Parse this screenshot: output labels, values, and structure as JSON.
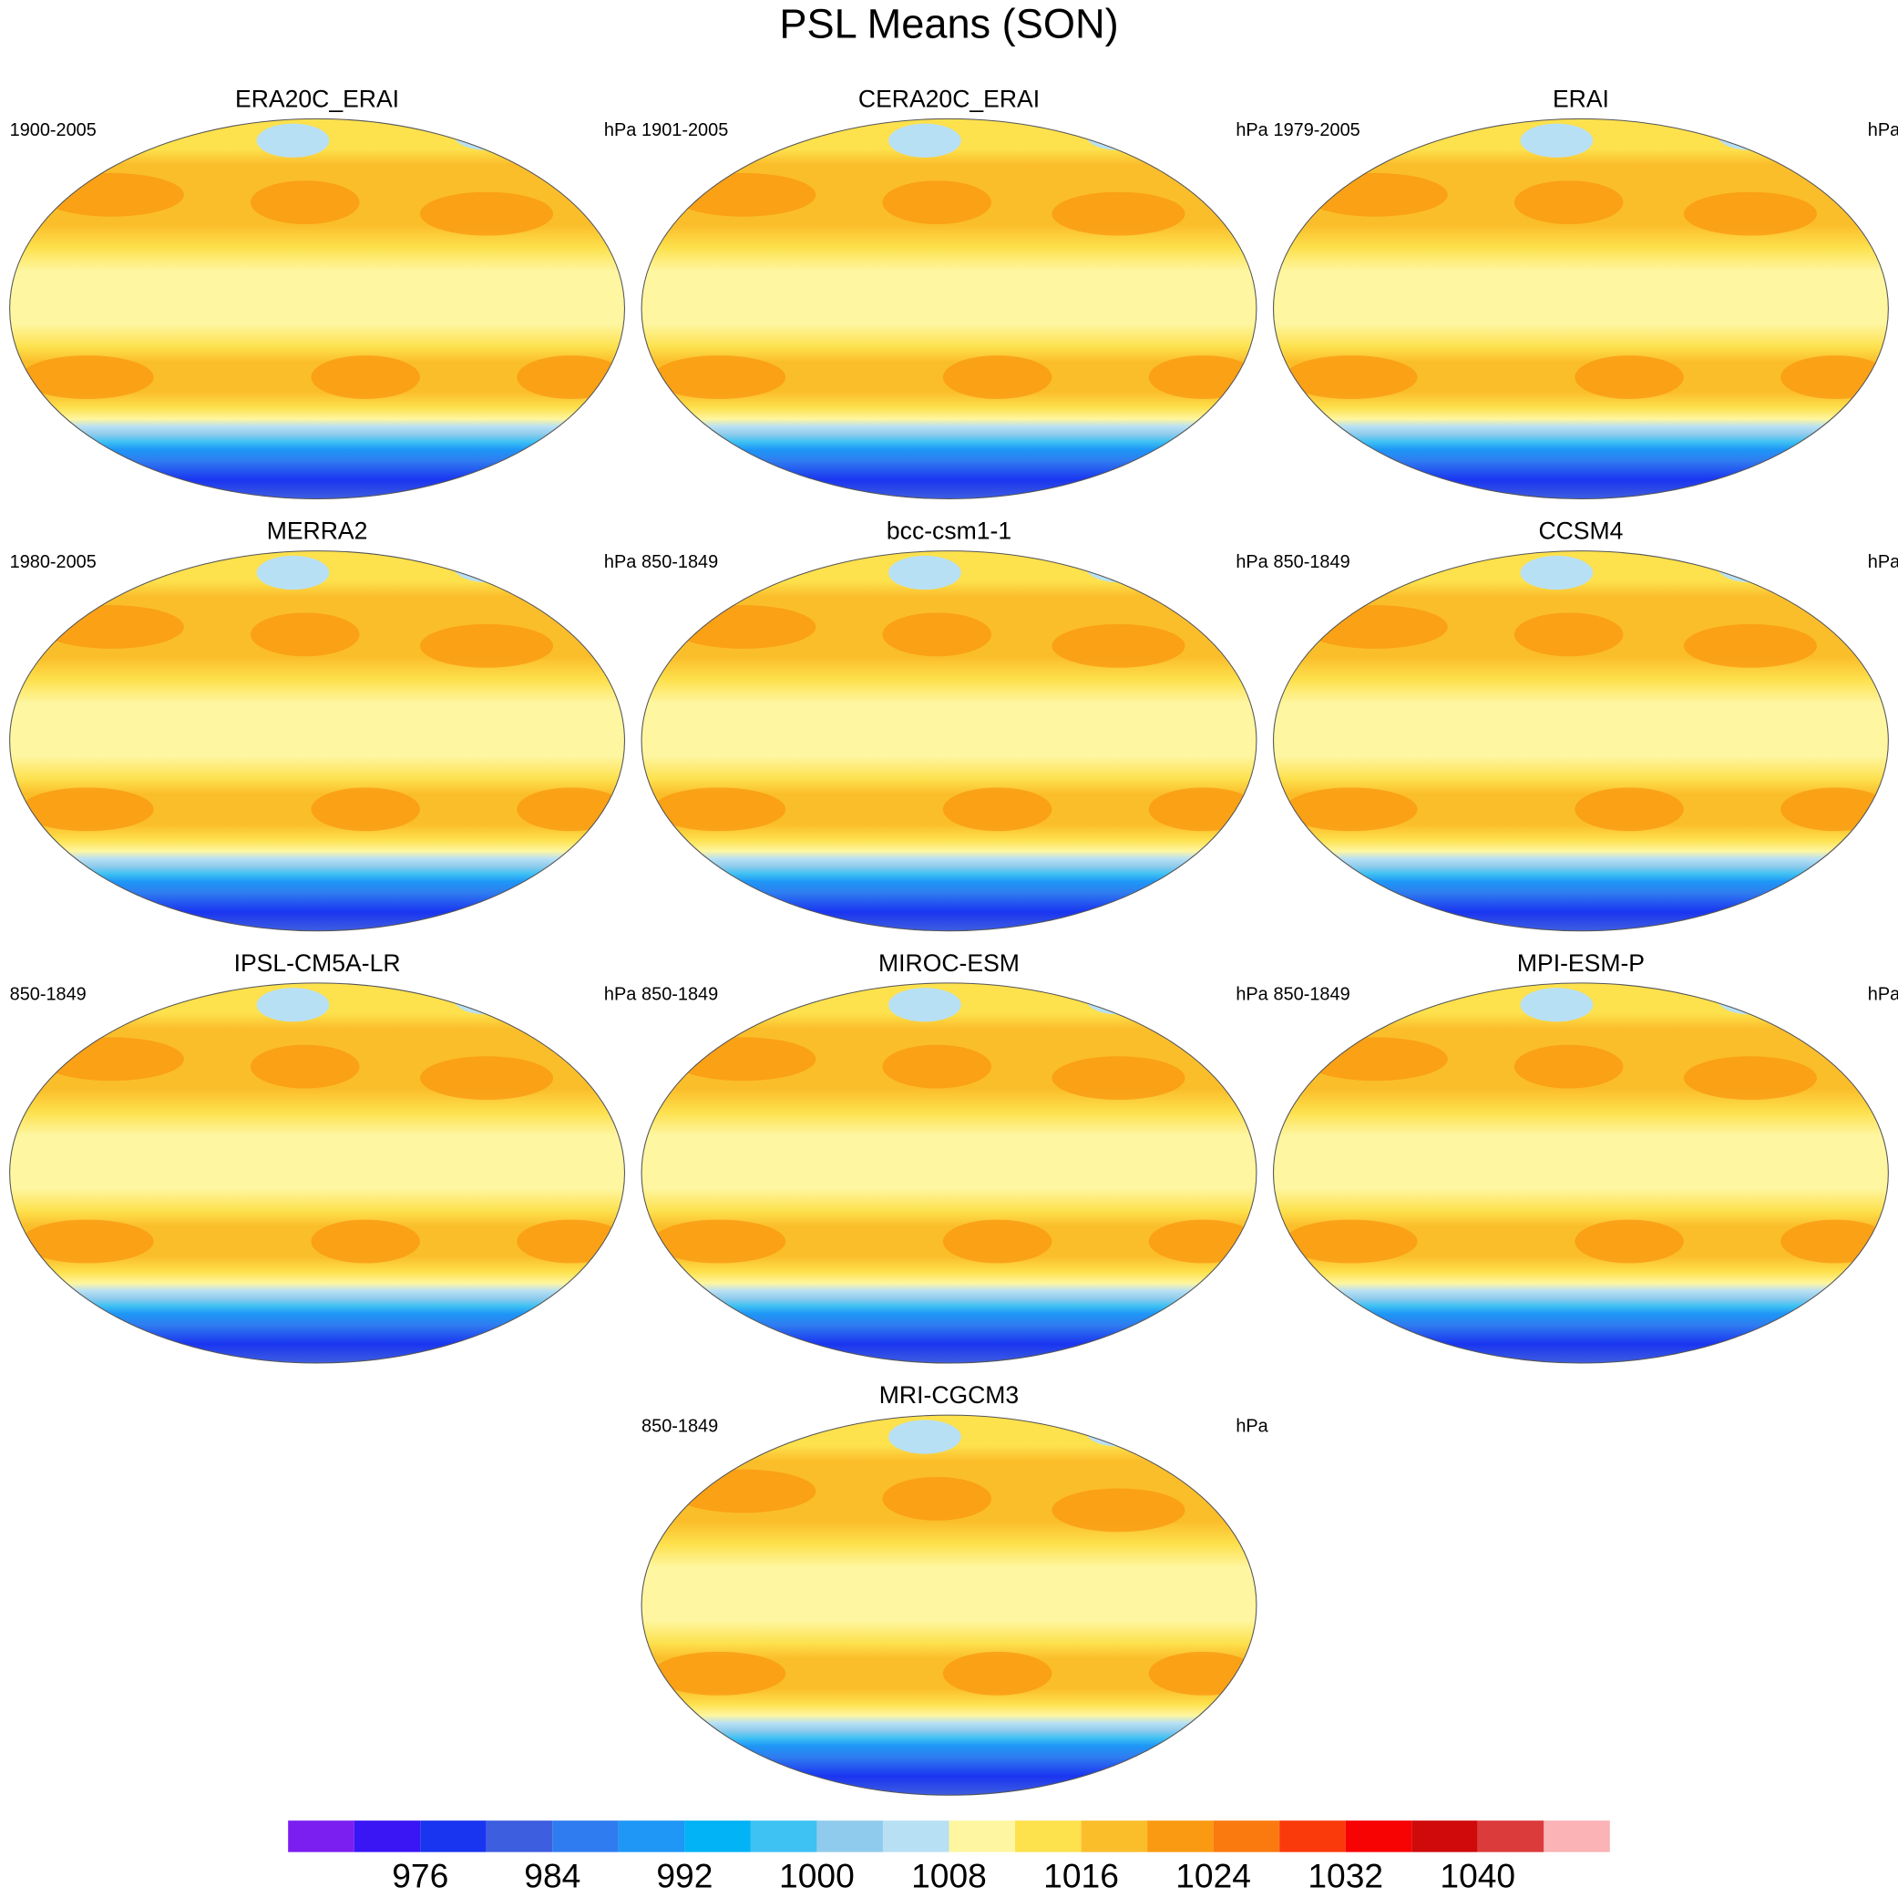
{
  "title": "PSL Means (SON)",
  "panels": [
    {
      "name": "ERA20C_ERAI",
      "period": "1900-2005",
      "units": "hPa"
    },
    {
      "name": "CERA20C_ERAI",
      "period": "1901-2005",
      "units": "hPa"
    },
    {
      "name": "ERAI",
      "period": "1979-2005",
      "units": "hPa"
    },
    {
      "name": "MERRA2",
      "period": "1980-2005",
      "units": "hPa"
    },
    {
      "name": "bcc-csm1-1",
      "period": "850-1849",
      "units": "hPa"
    },
    {
      "name": "CCSM4",
      "period": "850-1849",
      "units": "hPa"
    },
    {
      "name": "IPSL-CM5A-LR",
      "period": "850-1849",
      "units": "hPa"
    },
    {
      "name": "MIROC-ESM",
      "period": "850-1849",
      "units": "hPa"
    },
    {
      "name": "MPI-ESM-P",
      "period": "850-1849",
      "units": "hPa"
    },
    {
      "name": "MRI-CGCM3",
      "period": "850-1849",
      "units": "hPa"
    }
  ],
  "colorbar": {
    "lim": [
      968,
      1048
    ],
    "ticks": [
      976,
      984,
      992,
      1000,
      1008,
      1016,
      1024,
      1032,
      1040
    ],
    "colors": [
      "#7b1ff0",
      "#3b16f5",
      "#1a35f0",
      "#3e5ee0",
      "#2f7cf0",
      "#1e97f6",
      "#02b3f5",
      "#3ec1f3",
      "#8fcbec",
      "#b8e0f4",
      "#fef6a0",
      "#fde14d",
      "#fbbe2b",
      "#fa9a12",
      "#fb7a10",
      "#fb3a0c",
      "#f70304",
      "#d00a0a",
      "#dc3b3b",
      "#fbb3b6"
    ]
  }
}
